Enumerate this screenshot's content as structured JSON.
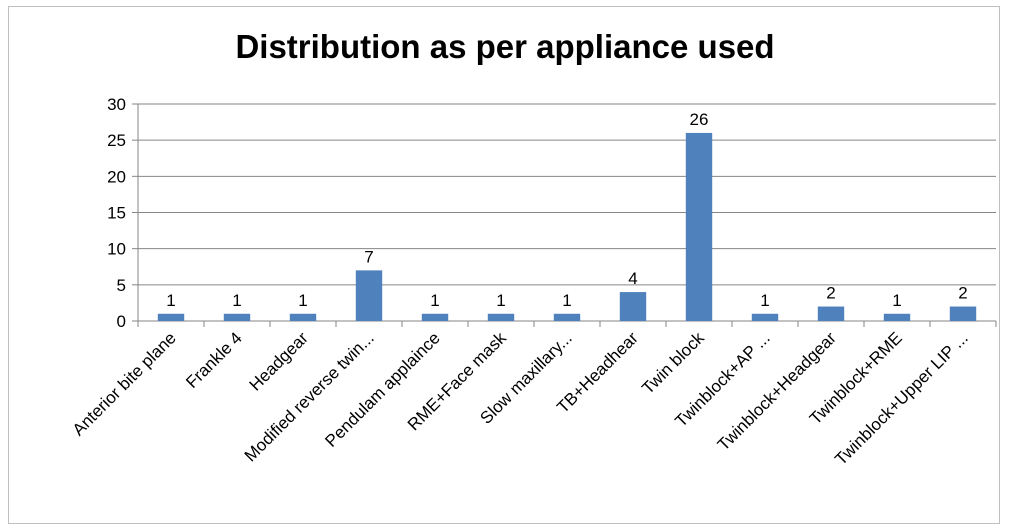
{
  "chart_data": {
    "type": "bar",
    "title": "Distribution as per appliance used",
    "categories": [
      "Anterior bite plane",
      "Frankle 4",
      "Headgear",
      "Modified reverse twin...",
      "Pendulam applaince",
      "RME+Face mask",
      "Slow maxillary...",
      "TB+Headhear",
      "Twin block",
      "Twinblock+AP ...",
      "Twinblock+Headgear",
      "Twinblock+RME",
      "Twinblock+Upper LIP ..."
    ],
    "values": [
      1,
      1,
      1,
      7,
      1,
      1,
      1,
      4,
      26,
      1,
      2,
      1,
      2
    ],
    "data_labels": [
      "1",
      "1",
      "1",
      "7",
      "1",
      "1",
      "1",
      "4",
      "26",
      "1",
      "2",
      "1",
      "2"
    ],
    "ylim": [
      0,
      30
    ],
    "yticks": [
      0,
      5,
      10,
      15,
      20,
      25,
      30
    ],
    "ytick_labels": [
      "0",
      "5",
      "10",
      "15",
      "20",
      "25",
      "30"
    ],
    "xlabel": "",
    "ylabel": "",
    "grid": true,
    "legend": "none",
    "colors": {
      "bar": "#4f81bd",
      "grid": "#868686",
      "axis": "#868686"
    }
  }
}
